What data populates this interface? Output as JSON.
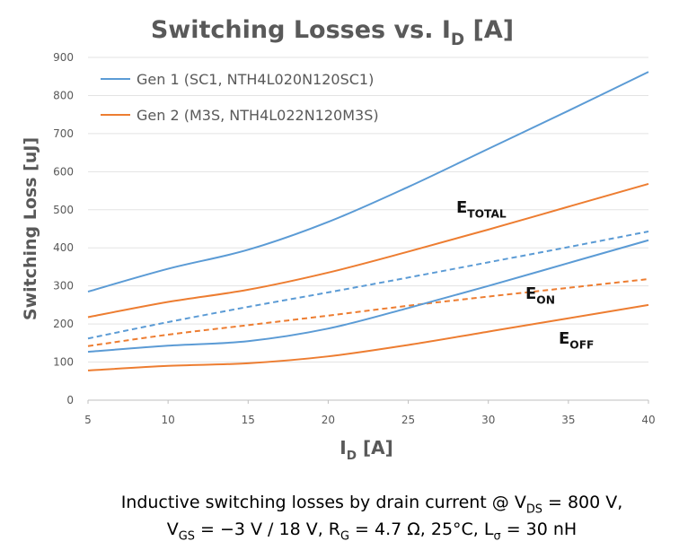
{
  "chart_data": {
    "type": "line",
    "title": [
      {
        "text": "Switching Losses vs. I"
      },
      {
        "text": "D",
        "sub": true
      },
      {
        "text": " [A]"
      }
    ],
    "x_label": [
      {
        "text": "I"
      },
      {
        "text": "D",
        "sub": true
      },
      {
        "text": " [A]"
      }
    ],
    "y_label": "Switching Loss [uJ]",
    "x": [
      5,
      10,
      15,
      20,
      25,
      30,
      35,
      40
    ],
    "xlim": [
      5,
      40
    ],
    "xticks": [
      5,
      10,
      15,
      20,
      25,
      30,
      35,
      40
    ],
    "ylim": [
      0,
      900
    ],
    "yticks": [
      0,
      100,
      200,
      300,
      400,
      500,
      600,
      700,
      800,
      900
    ],
    "grid": true,
    "legend": "top-left",
    "series": [
      {
        "name": "Gen 1 (SC1, NTH4L020N120SC1)",
        "color": "#5b9bd5",
        "dash": false,
        "values": [
          285,
          345,
          395,
          468,
          560,
          660,
          760,
          862
        ]
      },
      {
        "name": "Gen 2 (M3S, NTH4L022N120M3S)",
        "color": "#ed7d31",
        "dash": false,
        "values": [
          218,
          258,
          290,
          335,
          390,
          448,
          508,
          568
        ]
      },
      {
        "color": "#5b9bd5",
        "dash": true,
        "values": [
          162,
          205,
          245,
          283,
          322,
          362,
          402,
          443
        ]
      },
      {
        "color": "#ed7d31",
        "dash": true,
        "values": [
          142,
          172,
          197,
          222,
          248,
          272,
          295,
          318
        ]
      },
      {
        "color": "#5b9bd5",
        "dash": false,
        "values": [
          127,
          143,
          155,
          188,
          242,
          300,
          360,
          420
        ]
      },
      {
        "color": "#ed7d31",
        "dash": false,
        "values": [
          78,
          90,
          97,
          115,
          145,
          180,
          215,
          250
        ]
      }
    ],
    "annotations": [
      [
        {
          "text": "E"
        },
        {
          "text": "TOTAL",
          "sub": true
        }
      ],
      [
        {
          "text": "E"
        },
        {
          "text": "ON",
          "sub": true
        }
      ],
      [
        {
          "text": "E"
        },
        {
          "text": "OFF",
          "sub": true
        }
      ]
    ],
    "caption": [
      [
        {
          "text": "Inductive switching losses by drain current @ V"
        },
        {
          "text": "DS",
          "sub": true
        },
        {
          "text": " = 800 V,"
        }
      ],
      [
        {
          "text": "V"
        },
        {
          "text": "GS",
          "sub": true
        },
        {
          "text": " = −3 V / 18 V, R"
        },
        {
          "text": "G",
          "sub": true
        },
        {
          "text": " = 4.7 Ω, 25°C, L"
        },
        {
          "text": "σ",
          "sub": true
        },
        {
          "text": " = 30 nH"
        }
      ]
    ]
  }
}
